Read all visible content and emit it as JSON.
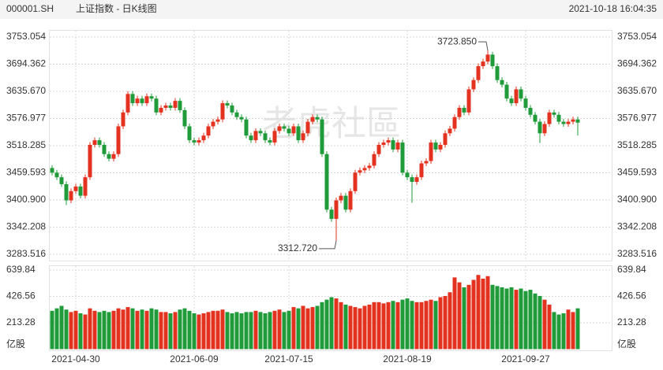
{
  "chart_data": {
    "type": "candlestick",
    "title": "000001.SH",
    "subtitle": "上证指数 - 日K线图",
    "timestamp": "2021-10-18 16:04:35",
    "watermark": "老虎社區",
    "high_label": "3723.850",
    "low_label": "3312.720",
    "up_color": "#e3321f",
    "down_color": "#1f9b3a",
    "grid": true,
    "categories": [
      null,
      null,
      null,
      null,
      null,
      "2021-04-30",
      null,
      null,
      null,
      null,
      null,
      null,
      null,
      null,
      null,
      null,
      null,
      null,
      null,
      null,
      null,
      null,
      null,
      null,
      null,
      null,
      null,
      null,
      null,
      null,
      "2021-06-09",
      null,
      null,
      null,
      null,
      null,
      null,
      null,
      null,
      null,
      null,
      null,
      null,
      null,
      null,
      null,
      null,
      null,
      null,
      null,
      "2021-07-15",
      null,
      null,
      null,
      null,
      null,
      null,
      null,
      null,
      null,
      null,
      null,
      null,
      null,
      null,
      null,
      null,
      null,
      null,
      null,
      null,
      null,
      null,
      null,
      null,
      "2021-08-19",
      null,
      null,
      null,
      null,
      null,
      null,
      null,
      null,
      null,
      null,
      null,
      null,
      null,
      null,
      null,
      null,
      null,
      null,
      null,
      null,
      null,
      null,
      null,
      null,
      "2021-09-27",
      null,
      null,
      null,
      null,
      null,
      null,
      null,
      null,
      null,
      null,
      null
    ],
    "open": [
      3470,
      3460,
      3450,
      3435,
      3400,
      3420,
      3430,
      3410,
      3450,
      3520,
      3530,
      3520,
      3500,
      3490,
      3500,
      3560,
      3590,
      3630,
      3610,
      3620,
      3610,
      3625,
      3620,
      3590,
      3600,
      3605,
      3600,
      3615,
      3595,
      3560,
      3530,
      3525,
      3530,
      3540,
      3560,
      3570,
      3575,
      3610,
      3605,
      3590,
      3580,
      3575,
      3540,
      3530,
      3550,
      3545,
      3530,
      3525,
      3550,
      3560,
      3555,
      3545,
      3560,
      3530,
      3545,
      3570,
      3580,
      3575,
      3500,
      3380,
      3360,
      3400,
      3410,
      3380,
      3420,
      3460,
      3465,
      3470,
      3475,
      3500,
      3520,
      3525,
      3530,
      3510,
      3525,
      3460,
      3450,
      3440,
      3450,
      3480,
      3485,
      3525,
      3510,
      3520,
      3545,
      3555,
      3580,
      3600,
      3590,
      3640,
      3660,
      3690,
      3700,
      3715,
      3690,
      3660,
      3650,
      3620,
      3610,
      3640,
      3620,
      3600,
      3585,
      3570,
      3545,
      3565,
      3590,
      3585,
      3570,
      3565,
      3570,
      3575
    ],
    "high": [
      3476,
      3466,
      3456,
      3441,
      3426,
      3436,
      3436,
      3456,
      3526,
      3536,
      3536,
      3526,
      3506,
      3506,
      3566,
      3596,
      3636,
      3636,
      3626,
      3626,
      3631,
      3631,
      3626,
      3606,
      3611,
      3611,
      3621,
      3621,
      3601,
      3566,
      3536,
      3536,
      3546,
      3566,
      3576,
      3581,
      3616,
      3616,
      3611,
      3596,
      3586,
      3581,
      3546,
      3556,
      3556,
      3551,
      3536,
      3556,
      3566,
      3566,
      3561,
      3566,
      3566,
      3551,
      3576,
      3586,
      3586,
      3581,
      3506,
      3386,
      3406,
      3416,
      3416,
      3426,
      3466,
      3471,
      3476,
      3481,
      3506,
      3526,
      3531,
      3536,
      3536,
      3531,
      3531,
      3466,
      3456,
      3456,
      3486,
      3491,
      3531,
      3531,
      3526,
      3551,
      3561,
      3586,
      3606,
      3606,
      3646,
      3666,
      3696,
      3706,
      3723.85,
      3721,
      3696,
      3666,
      3656,
      3626,
      3646,
      3646,
      3626,
      3606,
      3591,
      3576,
      3571,
      3596,
      3596,
      3591,
      3576,
      3576,
      3581,
      3581
    ],
    "low": [
      3454,
      3444,
      3429,
      3390,
      3394,
      3414,
      3404,
      3404,
      3444,
      3514,
      3514,
      3494,
      3484,
      3484,
      3494,
      3554,
      3584,
      3604,
      3604,
      3604,
      3604,
      3614,
      3584,
      3584,
      3594,
      3594,
      3594,
      3589,
      3554,
      3524,
      3519,
      3519,
      3524,
      3534,
      3554,
      3564,
      3569,
      3599,
      3584,
      3574,
      3569,
      3534,
      3524,
      3524,
      3539,
      3524,
      3519,
      3519,
      3544,
      3549,
      3539,
      3539,
      3524,
      3524,
      3539,
      3564,
      3569,
      3494,
      3374,
      3354,
      3312.72,
      3394,
      3374,
      3374,
      3414,
      3454,
      3459,
      3464,
      3469,
      3494,
      3514,
      3519,
      3504,
      3504,
      3454,
      3444,
      3395,
      3434,
      3444,
      3474,
      3479,
      3504,
      3504,
      3514,
      3539,
      3549,
      3574,
      3584,
      3584,
      3634,
      3654,
      3684,
      3694,
      3684,
      3654,
      3644,
      3614,
      3604,
      3604,
      3614,
      3594,
      3579,
      3564,
      3524,
      3539,
      3559,
      3579,
      3564,
      3559,
      3559,
      3564,
      3540
    ],
    "close": [
      3460,
      3450,
      3435,
      3400,
      3420,
      3430,
      3410,
      3450,
      3520,
      3530,
      3520,
      3500,
      3490,
      3500,
      3560,
      3590,
      3630,
      3610,
      3620,
      3610,
      3625,
      3620,
      3590,
      3600,
      3605,
      3600,
      3615,
      3595,
      3560,
      3530,
      3525,
      3530,
      3540,
      3560,
      3570,
      3575,
      3610,
      3605,
      3590,
      3580,
      3575,
      3540,
      3530,
      3550,
      3545,
      3530,
      3525,
      3550,
      3560,
      3555,
      3545,
      3560,
      3530,
      3545,
      3570,
      3580,
      3575,
      3500,
      3380,
      3360,
      3400,
      3410,
      3380,
      3420,
      3460,
      3465,
      3470,
      3475,
      3500,
      3520,
      3525,
      3530,
      3510,
      3525,
      3460,
      3450,
      3440,
      3450,
      3480,
      3485,
      3525,
      3510,
      3520,
      3545,
      3555,
      3580,
      3600,
      3590,
      3640,
      3660,
      3690,
      3700,
      3715,
      3690,
      3660,
      3650,
      3620,
      3610,
      3640,
      3620,
      3600,
      3585,
      3570,
      3545,
      3565,
      3590,
      3585,
      3570,
      3565,
      3570,
      3575,
      3568
    ],
    "ylim": [
      3283.516,
      3753.054
    ],
    "yticks": [
      3753.054,
      3694.362,
      {
        "value": 3635.67,
        "label": "3635.670"
      },
      3576.977,
      3518.285,
      3459.593,
      {
        "value": 3400.9,
        "label": "3400.900"
      },
      3342.208,
      3283.516
    ],
    "volume": {
      "unit": "亿股",
      "ylim": [
        0,
        662
      ],
      "yticks": [
        639.84,
        426.56,
        213.28
      ],
      "values": [
        310,
        330,
        350,
        320,
        300,
        310,
        290,
        280,
        330,
        310,
        300,
        310,
        300,
        310,
        330,
        320,
        340,
        330,
        310,
        320,
        310,
        330,
        320,
        300,
        300,
        290,
        300,
        320,
        330,
        310,
        290,
        280,
        290,
        300,
        310,
        310,
        320,
        300,
        290,
        300,
        290,
        300,
        300,
        310,
        300,
        290,
        300,
        310,
        320,
        300,
        310,
        340,
        330,
        350,
        330,
        340,
        350,
        380,
        400,
        420,
        410,
        380,
        360,
        350,
        340,
        330,
        350,
        360,
        380,
        380,
        370,
        380,
        390,
        380,
        400,
        410,
        390,
        380,
        380,
        390,
        400,
        390,
        420,
        430,
        460,
        580,
        540,
        500,
        520,
        560,
        600,
        570,
        590,
        520,
        510,
        500,
        490,
        500,
        480,
        490,
        470,
        480,
        450,
        430,
        400,
        360,
        300,
        280,
        290,
        320,
        300,
        330
      ]
    }
  }
}
